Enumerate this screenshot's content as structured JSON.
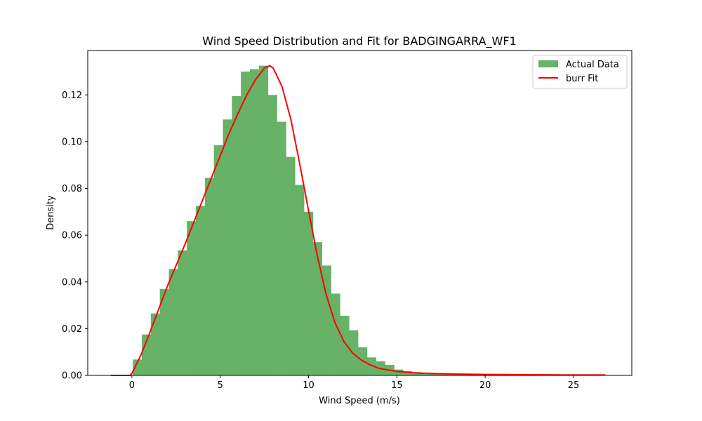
{
  "chart_data": {
    "type": "bar",
    "title": "Wind Speed Distribution and Fit for BADGINGARRA_WF1",
    "xlabel": "Wind Speed (m/s)",
    "ylabel": "Density",
    "xlim": [
      -2.5,
      28.3
    ],
    "ylim": [
      0,
      0.139
    ],
    "grid": false,
    "legend_position": "top-right",
    "xticks": [
      0,
      5,
      10,
      15,
      20,
      25
    ],
    "yticks": [
      0.0,
      0.02,
      0.04,
      0.06,
      0.08,
      0.1,
      0.12
    ],
    "ytick_labels": [
      "0.00",
      "0.02",
      "0.04",
      "0.06",
      "0.08",
      "0.10",
      "0.12"
    ],
    "histogram": {
      "name": "Actual Data",
      "color": "#67b267",
      "bin_width": 0.51,
      "bin_edges": [
        0.05,
        0.56,
        1.07,
        1.58,
        2.09,
        2.6,
        3.11,
        3.62,
        4.13,
        4.64,
        5.15,
        5.66,
        6.17,
        6.68,
        7.19,
        7.7,
        8.21,
        8.72,
        9.23,
        9.74,
        10.25,
        10.76,
        11.27,
        11.78,
        12.29,
        12.8,
        13.31,
        13.82,
        14.33,
        14.84,
        15.35,
        15.86,
        16.37,
        16.88,
        17.39,
        17.9,
        18.41,
        18.92,
        19.43,
        19.94,
        20.45,
        20.96,
        21.47,
        21.98,
        22.49,
        23.0,
        23.51,
        24.02,
        24.53,
        25.04,
        25.55,
        26.06,
        26.57
      ],
      "values": [
        0.0068,
        0.0175,
        0.0265,
        0.037,
        0.0455,
        0.0535,
        0.066,
        0.0725,
        0.0845,
        0.0985,
        0.1095,
        0.1195,
        0.13,
        0.131,
        0.1325,
        0.12,
        0.1085,
        0.0935,
        0.0815,
        0.07,
        0.057,
        0.047,
        0.035,
        0.0255,
        0.0193,
        0.012,
        0.0077,
        0.006,
        0.0045,
        0.0025,
        0.0018,
        0.0014,
        0.0011,
        0.0008,
        0.0006,
        0.0005,
        0.0004,
        0.0003,
        0.0002,
        0.0002,
        0.0002,
        0.0001,
        0.0001,
        0.0001,
        0.0001,
        0.0001,
        0.0001,
        0.0001,
        0.0,
        0.0,
        0.0,
        0.0
      ]
    },
    "fit_line": {
      "name": "burr Fit",
      "color": "#ff0000",
      "x": [
        -1.2,
        -0.1,
        0.0,
        0.5,
        1.0,
        1.5,
        2.0,
        2.5,
        3.0,
        3.5,
        4.0,
        4.5,
        5.0,
        5.5,
        6.0,
        6.5,
        7.0,
        7.5,
        7.8,
        8.0,
        8.5,
        9.0,
        9.5,
        10.0,
        10.5,
        11.0,
        11.5,
        12.0,
        12.5,
        13.0,
        13.5,
        14.0,
        15.0,
        16.0,
        17.0,
        18.0,
        20.0,
        22.0,
        25.0,
        26.8
      ],
      "y": [
        0.0,
        0.0,
        0.0009,
        0.0085,
        0.018,
        0.028,
        0.038,
        0.047,
        0.056,
        0.0655,
        0.075,
        0.0845,
        0.094,
        0.1035,
        0.112,
        0.12,
        0.1265,
        0.1315,
        0.1325,
        0.1315,
        0.1235,
        0.1095,
        0.0905,
        0.0705,
        0.051,
        0.0345,
        0.0225,
        0.0145,
        0.0095,
        0.0065,
        0.0045,
        0.003,
        0.0017,
        0.0011,
        0.0008,
        0.0006,
        0.0004,
        0.0003,
        0.0002,
        0.0002
      ]
    }
  }
}
